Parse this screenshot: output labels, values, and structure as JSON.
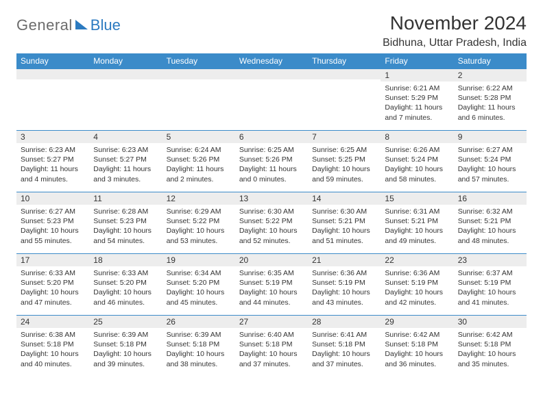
{
  "brand": {
    "part1": "General",
    "part2": "Blue"
  },
  "title": "November 2024",
  "location": "Bidhuna, Uttar Pradesh, India",
  "colors": {
    "header_bg": "#3b8bc9",
    "header_text": "#ffffff",
    "daynum_bg": "#ededed",
    "border": "#3b8bc9",
    "text": "#333333",
    "brand_gray": "#6b6b6b",
    "brand_blue": "#2b7ac0"
  },
  "weekdays": [
    "Sunday",
    "Monday",
    "Tuesday",
    "Wednesday",
    "Thursday",
    "Friday",
    "Saturday"
  ],
  "weeks": [
    [
      {
        "n": "",
        "sr": "",
        "ss": "",
        "dl": ""
      },
      {
        "n": "",
        "sr": "",
        "ss": "",
        "dl": ""
      },
      {
        "n": "",
        "sr": "",
        "ss": "",
        "dl": ""
      },
      {
        "n": "",
        "sr": "",
        "ss": "",
        "dl": ""
      },
      {
        "n": "",
        "sr": "",
        "ss": "",
        "dl": ""
      },
      {
        "n": "1",
        "sr": "Sunrise: 6:21 AM",
        "ss": "Sunset: 5:29 PM",
        "dl": "Daylight: 11 hours and 7 minutes."
      },
      {
        "n": "2",
        "sr": "Sunrise: 6:22 AM",
        "ss": "Sunset: 5:28 PM",
        "dl": "Daylight: 11 hours and 6 minutes."
      }
    ],
    [
      {
        "n": "3",
        "sr": "Sunrise: 6:23 AM",
        "ss": "Sunset: 5:27 PM",
        "dl": "Daylight: 11 hours and 4 minutes."
      },
      {
        "n": "4",
        "sr": "Sunrise: 6:23 AM",
        "ss": "Sunset: 5:27 PM",
        "dl": "Daylight: 11 hours and 3 minutes."
      },
      {
        "n": "5",
        "sr": "Sunrise: 6:24 AM",
        "ss": "Sunset: 5:26 PM",
        "dl": "Daylight: 11 hours and 2 minutes."
      },
      {
        "n": "6",
        "sr": "Sunrise: 6:25 AM",
        "ss": "Sunset: 5:26 PM",
        "dl": "Daylight: 11 hours and 0 minutes."
      },
      {
        "n": "7",
        "sr": "Sunrise: 6:25 AM",
        "ss": "Sunset: 5:25 PM",
        "dl": "Daylight: 10 hours and 59 minutes."
      },
      {
        "n": "8",
        "sr": "Sunrise: 6:26 AM",
        "ss": "Sunset: 5:24 PM",
        "dl": "Daylight: 10 hours and 58 minutes."
      },
      {
        "n": "9",
        "sr": "Sunrise: 6:27 AM",
        "ss": "Sunset: 5:24 PM",
        "dl": "Daylight: 10 hours and 57 minutes."
      }
    ],
    [
      {
        "n": "10",
        "sr": "Sunrise: 6:27 AM",
        "ss": "Sunset: 5:23 PM",
        "dl": "Daylight: 10 hours and 55 minutes."
      },
      {
        "n": "11",
        "sr": "Sunrise: 6:28 AM",
        "ss": "Sunset: 5:23 PM",
        "dl": "Daylight: 10 hours and 54 minutes."
      },
      {
        "n": "12",
        "sr": "Sunrise: 6:29 AM",
        "ss": "Sunset: 5:22 PM",
        "dl": "Daylight: 10 hours and 53 minutes."
      },
      {
        "n": "13",
        "sr": "Sunrise: 6:30 AM",
        "ss": "Sunset: 5:22 PM",
        "dl": "Daylight: 10 hours and 52 minutes."
      },
      {
        "n": "14",
        "sr": "Sunrise: 6:30 AM",
        "ss": "Sunset: 5:21 PM",
        "dl": "Daylight: 10 hours and 51 minutes."
      },
      {
        "n": "15",
        "sr": "Sunrise: 6:31 AM",
        "ss": "Sunset: 5:21 PM",
        "dl": "Daylight: 10 hours and 49 minutes."
      },
      {
        "n": "16",
        "sr": "Sunrise: 6:32 AM",
        "ss": "Sunset: 5:21 PM",
        "dl": "Daylight: 10 hours and 48 minutes."
      }
    ],
    [
      {
        "n": "17",
        "sr": "Sunrise: 6:33 AM",
        "ss": "Sunset: 5:20 PM",
        "dl": "Daylight: 10 hours and 47 minutes."
      },
      {
        "n": "18",
        "sr": "Sunrise: 6:33 AM",
        "ss": "Sunset: 5:20 PM",
        "dl": "Daylight: 10 hours and 46 minutes."
      },
      {
        "n": "19",
        "sr": "Sunrise: 6:34 AM",
        "ss": "Sunset: 5:20 PM",
        "dl": "Daylight: 10 hours and 45 minutes."
      },
      {
        "n": "20",
        "sr": "Sunrise: 6:35 AM",
        "ss": "Sunset: 5:19 PM",
        "dl": "Daylight: 10 hours and 44 minutes."
      },
      {
        "n": "21",
        "sr": "Sunrise: 6:36 AM",
        "ss": "Sunset: 5:19 PM",
        "dl": "Daylight: 10 hours and 43 minutes."
      },
      {
        "n": "22",
        "sr": "Sunrise: 6:36 AM",
        "ss": "Sunset: 5:19 PM",
        "dl": "Daylight: 10 hours and 42 minutes."
      },
      {
        "n": "23",
        "sr": "Sunrise: 6:37 AM",
        "ss": "Sunset: 5:19 PM",
        "dl": "Daylight: 10 hours and 41 minutes."
      }
    ],
    [
      {
        "n": "24",
        "sr": "Sunrise: 6:38 AM",
        "ss": "Sunset: 5:18 PM",
        "dl": "Daylight: 10 hours and 40 minutes."
      },
      {
        "n": "25",
        "sr": "Sunrise: 6:39 AM",
        "ss": "Sunset: 5:18 PM",
        "dl": "Daylight: 10 hours and 39 minutes."
      },
      {
        "n": "26",
        "sr": "Sunrise: 6:39 AM",
        "ss": "Sunset: 5:18 PM",
        "dl": "Daylight: 10 hours and 38 minutes."
      },
      {
        "n": "27",
        "sr": "Sunrise: 6:40 AM",
        "ss": "Sunset: 5:18 PM",
        "dl": "Daylight: 10 hours and 37 minutes."
      },
      {
        "n": "28",
        "sr": "Sunrise: 6:41 AM",
        "ss": "Sunset: 5:18 PM",
        "dl": "Daylight: 10 hours and 37 minutes."
      },
      {
        "n": "29",
        "sr": "Sunrise: 6:42 AM",
        "ss": "Sunset: 5:18 PM",
        "dl": "Daylight: 10 hours and 36 minutes."
      },
      {
        "n": "30",
        "sr": "Sunrise: 6:42 AM",
        "ss": "Sunset: 5:18 PM",
        "dl": "Daylight: 10 hours and 35 minutes."
      }
    ]
  ]
}
